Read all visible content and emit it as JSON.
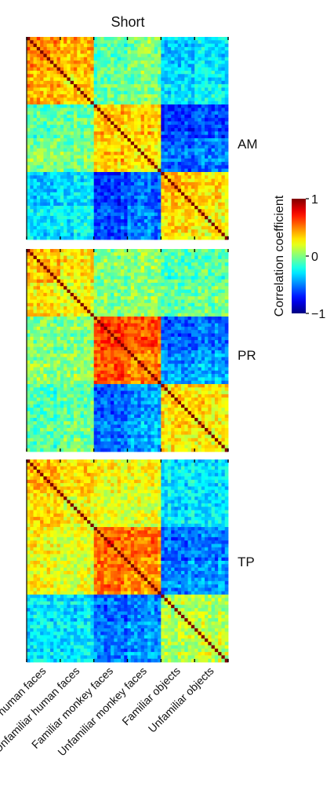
{
  "chart_data": [
    {
      "type": "heatmap",
      "title": "Short",
      "panel_label": "AM",
      "categories": [
        "Familiar human faces",
        "Unfamiliar human faces",
        "Familiar monkey faces",
        "Unfamiliar monkey faces",
        "Familiar objects",
        "Unfamiliar objects"
      ],
      "block_means": [
        [
          0.45,
          0.38,
          -0.08,
          0.0,
          -0.38,
          -0.3
        ],
        [
          0.38,
          0.3,
          -0.05,
          0.0,
          -0.32,
          -0.25
        ],
        [
          -0.08,
          -0.05,
          0.38,
          0.35,
          -0.65,
          -0.6
        ],
        [
          0.0,
          0.0,
          0.35,
          0.3,
          -0.55,
          -0.5
        ],
        [
          -0.38,
          -0.32,
          -0.65,
          -0.55,
          0.35,
          0.3
        ],
        [
          -0.3,
          -0.25,
          -0.6,
          -0.5,
          0.3,
          0.25
        ]
      ],
      "diagonal": 1,
      "zlim": [
        -1,
        1
      ]
    },
    {
      "type": "heatmap",
      "panel_label": "PR",
      "categories": [
        "Familiar human faces",
        "Unfamiliar human faces",
        "Familiar monkey faces",
        "Unfamiliar monkey faces",
        "Familiar objects",
        "Unfamiliar objects"
      ],
      "block_means": [
        [
          0.35,
          0.28,
          -0.02,
          0.02,
          -0.12,
          -0.08
        ],
        [
          0.28,
          0.2,
          -0.02,
          0.02,
          -0.1,
          -0.05
        ],
        [
          -0.02,
          -0.02,
          0.6,
          0.55,
          -0.62,
          -0.55
        ],
        [
          0.02,
          0.02,
          0.55,
          0.48,
          -0.48,
          -0.42
        ],
        [
          -0.12,
          -0.1,
          -0.62,
          -0.48,
          0.3,
          0.28
        ],
        [
          -0.08,
          -0.05,
          -0.55,
          -0.42,
          0.28,
          0.25
        ]
      ],
      "diagonal": 1,
      "zlim": [
        -1,
        1
      ]
    },
    {
      "type": "heatmap",
      "panel_label": "TP",
      "categories": [
        "Familiar human faces",
        "Unfamiliar human faces",
        "Familiar monkey faces",
        "Unfamiliar monkey faces",
        "Familiar objects",
        "Unfamiliar objects"
      ],
      "block_means": [
        [
          0.35,
          0.3,
          0.2,
          0.22,
          -0.3,
          -0.28
        ],
        [
          0.3,
          0.25,
          0.18,
          0.2,
          -0.28,
          -0.26
        ],
        [
          0.2,
          0.18,
          0.52,
          0.5,
          -0.55,
          -0.52
        ],
        [
          0.22,
          0.2,
          0.5,
          0.45,
          -0.48,
          -0.45
        ],
        [
          -0.3,
          -0.28,
          -0.55,
          -0.48,
          0.1,
          0.12
        ],
        [
          -0.28,
          -0.26,
          -0.52,
          -0.45,
          0.12,
          0.15
        ]
      ],
      "diagonal": 1,
      "zlim": [
        -1,
        1
      ]
    }
  ],
  "colorbar": {
    "label": "Correlation coefficient",
    "ticks": [
      {
        "value": 1,
        "label": "1"
      },
      {
        "value": 0,
        "label": "0"
      },
      {
        "value": -1,
        "label": "−1"
      }
    ],
    "colormap": "jet"
  }
}
